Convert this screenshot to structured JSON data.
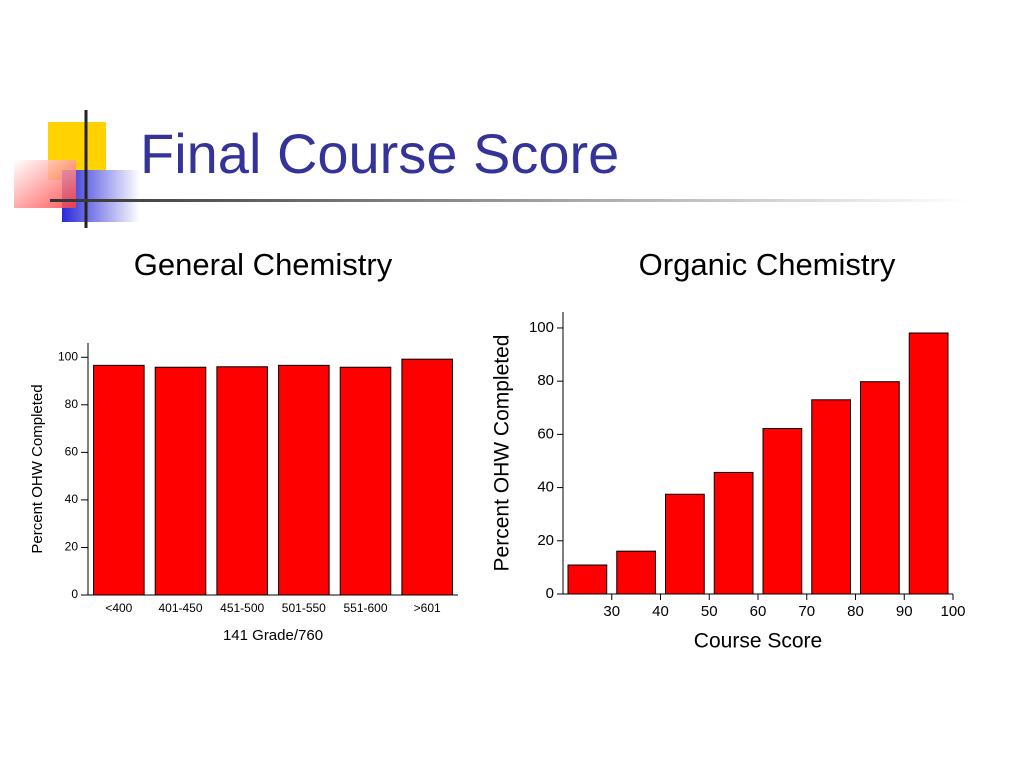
{
  "title": "Final Course Score",
  "chart_data": [
    {
      "type": "bar",
      "title": "General Chemistry",
      "categories": [
        "<400",
        "401-450",
        "451-500",
        "501-550",
        "551-600",
        ">601"
      ],
      "values": [
        96.6,
        95.8,
        96,
        96.6,
        95.8,
        99.2
      ],
      "color": "#ff0000",
      "xlabel": "141 Grade/760",
      "ylabel": "Percent OHW Completed",
      "ylim": [
        0,
        106
      ],
      "yticks": [
        0,
        20,
        40,
        60,
        80,
        100
      ]
    },
    {
      "type": "histogram",
      "title": "Organic Chemistry",
      "bins": [
        20,
        30,
        40,
        50,
        60,
        70,
        80,
        90,
        100
      ],
      "values": [
        10.9,
        16.1,
        37.5,
        45.7,
        62.2,
        73,
        79.8,
        98.1
      ],
      "color": "#ff0000",
      "xlabel": "Course Score",
      "ylabel": "Percent OHW Completed",
      "xlim": [
        20,
        100
      ],
      "xticks": [
        30,
        40,
        50,
        60,
        70,
        80,
        90,
        100
      ],
      "ylim": [
        0,
        106
      ],
      "yticks": [
        0,
        20,
        40,
        60,
        80,
        100
      ]
    }
  ]
}
